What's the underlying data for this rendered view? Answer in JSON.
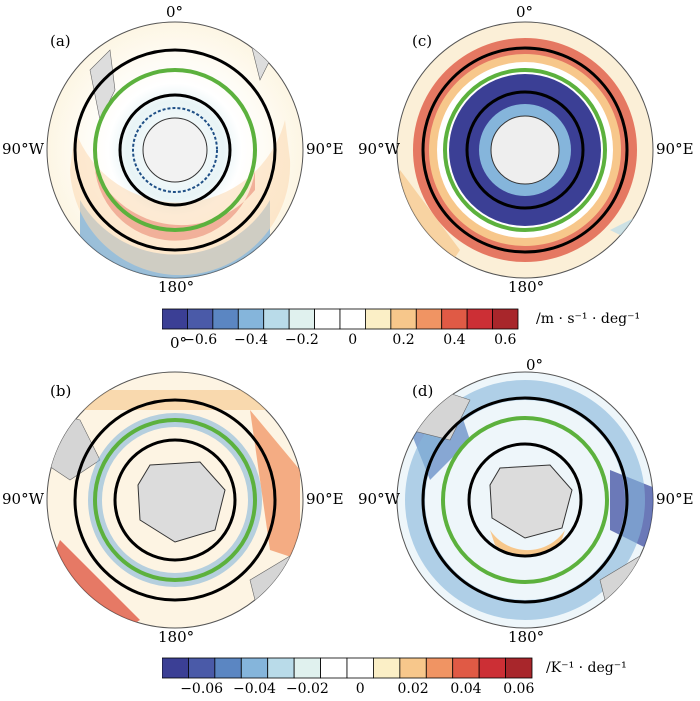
{
  "panels": [
    {
      "id": "a",
      "label": "(a)",
      "top": "0°",
      "left": "90°W",
      "right": "90°E",
      "bottom": "180°",
      "type": "wind"
    },
    {
      "id": "c",
      "label": "(c)",
      "top": "0°",
      "left": "90°W",
      "right": "90°E",
      "bottom": "180°",
      "type": "wind-strong"
    },
    {
      "id": "b",
      "label": "(b)",
      "top": "0°",
      "left": "90°W",
      "right": "90°E",
      "bottom": "180°",
      "type": "temp"
    },
    {
      "id": "d",
      "label": "(d)",
      "top": "0°",
      "left": "90°W",
      "right": "90°E",
      "bottom": "180°",
      "type": "temp-blue"
    }
  ],
  "colorbar_top": {
    "ticks": [
      "−0.6",
      "−0.4",
      "−0.2",
      "0",
      "0.2",
      "0.4",
      "0.6"
    ],
    "unit": "/m · s⁻¹ · deg⁻¹"
  },
  "colorbar_bottom": {
    "ticks": [
      "−0.06",
      "−0.04",
      "−0.02",
      "0",
      "0.02",
      "0.04",
      "0.06"
    ],
    "unit": "/K⁻¹ · deg⁻¹"
  },
  "colors": [
    "#3b3f95",
    "#4a5aa8",
    "#5b86c2",
    "#85b5db",
    "#b9dbe9",
    "#e0f1ee",
    "#ffffff",
    "#ffffff",
    "#fbefc6",
    "#f7c78b",
    "#f09463",
    "#e05a45",
    "#cc2f35",
    "#a8262b"
  ]
}
